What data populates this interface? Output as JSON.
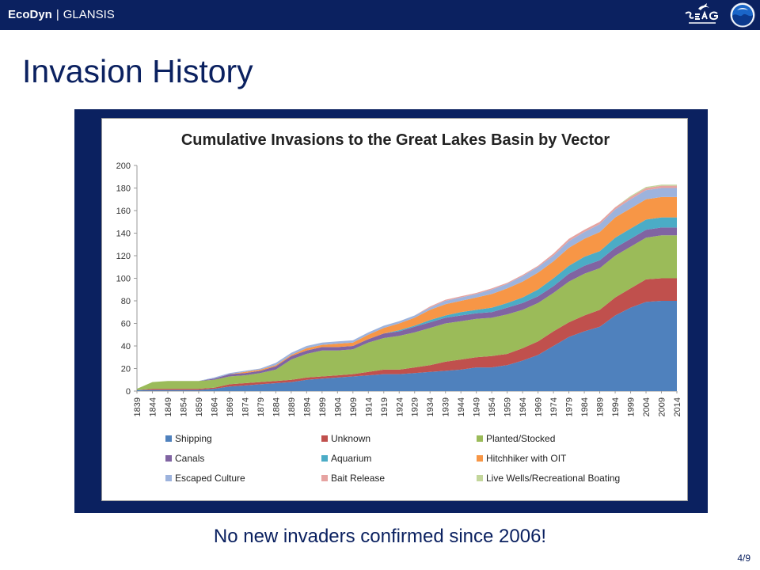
{
  "header": {
    "brand": "EcoDyn",
    "separator": "|",
    "subbrand": "GLANSIS",
    "sea_grant_logo": "sea-grant-logo",
    "noaa_logo": "noaa-logo",
    "bar_color": "#0b2160"
  },
  "slide": {
    "title": "Invasion History",
    "caption": "No new invaders confirmed since 2006!",
    "page": "4/9"
  },
  "chart_data": {
    "type": "area",
    "stacked": true,
    "title": "Cumulative Invasions to the Great Lakes Basin by Vector",
    "xlabel": "",
    "ylabel": "",
    "ylim": [
      0,
      200
    ],
    "yticks": [
      0,
      20,
      40,
      60,
      80,
      100,
      120,
      140,
      160,
      180,
      200
    ],
    "grid": false,
    "legend_position": "bottom",
    "x": [
      1839,
      1844,
      1849,
      1854,
      1859,
      1864,
      1869,
      1874,
      1879,
      1884,
      1889,
      1894,
      1899,
      1904,
      1909,
      1914,
      1919,
      1924,
      1929,
      1934,
      1939,
      1944,
      1949,
      1954,
      1959,
      1964,
      1969,
      1974,
      1979,
      1984,
      1989,
      1994,
      1999,
      2004,
      2009,
      2014
    ],
    "series": [
      {
        "name": "Shipping",
        "color": "#4f81bd",
        "values": [
          1,
          1,
          1,
          1,
          1,
          2,
          4,
          5,
          6,
          7,
          8,
          10,
          11,
          12,
          13,
          14,
          15,
          15,
          16,
          17,
          18,
          19,
          21,
          21,
          23,
          27,
          32,
          40,
          48,
          53,
          57,
          67,
          74,
          79,
          80,
          80
        ]
      },
      {
        "name": "Unknown",
        "color": "#c0504d",
        "values": [
          0,
          1,
          1,
          1,
          1,
          1,
          2,
          2,
          2,
          2,
          2,
          2,
          2,
          2,
          2,
          3,
          4,
          4,
          5,
          6,
          8,
          9,
          9,
          10,
          10,
          11,
          12,
          13,
          13,
          14,
          15,
          16,
          17,
          20,
          20,
          20
        ]
      },
      {
        "name": "Planted/Stocked",
        "color": "#9bbb59",
        "values": [
          1,
          6,
          7,
          7,
          7,
          7,
          7,
          7,
          8,
          10,
          18,
          21,
          23,
          22,
          22,
          26,
          28,
          30,
          31,
          33,
          34,
          34,
          34,
          34,
          35,
          34,
          34,
          34,
          36,
          37,
          37,
          37,
          37,
          37,
          38,
          38
        ]
      },
      {
        "name": "Canals",
        "color": "#8064a2",
        "values": [
          0,
          0,
          0,
          0,
          0,
          1,
          2,
          2,
          2,
          3,
          3,
          3,
          3,
          3,
          3,
          3,
          4,
          4,
          5,
          5,
          5,
          5,
          5,
          5,
          6,
          6,
          6,
          6,
          7,
          7,
          7,
          7,
          7,
          7,
          7,
          7
        ]
      },
      {
        "name": "Aquarium",
        "color": "#4bacc6",
        "values": [
          0,
          0,
          0,
          0,
          0,
          0,
          0,
          0,
          0,
          0,
          0,
          0,
          0,
          0,
          0,
          0,
          0,
          1,
          1,
          2,
          2,
          3,
          3,
          4,
          4,
          5,
          6,
          7,
          7,
          8,
          8,
          9,
          9,
          9,
          9,
          9
        ]
      },
      {
        "name": "Hitchhiker with OIT",
        "color": "#f79646",
        "values": [
          0,
          0,
          0,
          0,
          0,
          0,
          0,
          1,
          1,
          1,
          1,
          2,
          2,
          3,
          3,
          4,
          5,
          6,
          7,
          9,
          10,
          10,
          11,
          12,
          13,
          14,
          15,
          15,
          16,
          16,
          17,
          18,
          18,
          18,
          18,
          18
        ]
      },
      {
        "name": "Escaped Culture",
        "color": "#9db3dd",
        "values": [
          0,
          0,
          0,
          0,
          0,
          1,
          1,
          1,
          1,
          2,
          2,
          2,
          2,
          2,
          2,
          2,
          2,
          2,
          2,
          2,
          3,
          3,
          3,
          4,
          4,
          5,
          5,
          5,
          6,
          6,
          7,
          7,
          8,
          8,
          8,
          8
        ]
      },
      {
        "name": "Bait Release",
        "color": "#e6a3a1",
        "values": [
          0,
          0,
          0,
          0,
          0,
          0,
          0,
          0,
          0,
          0,
          0,
          0,
          0,
          0,
          0,
          0,
          0,
          0,
          0,
          1,
          1,
          1,
          1,
          1,
          1,
          1,
          1,
          2,
          2,
          2,
          2,
          2,
          2,
          2,
          2,
          2
        ]
      },
      {
        "name": "Live Wells/Recreational Boating",
        "color": "#c3d69b",
        "values": [
          0,
          0,
          0,
          0,
          0,
          0,
          0,
          0,
          0,
          0,
          0,
          0,
          0,
          0,
          0,
          0,
          0,
          0,
          0,
          0,
          0,
          0,
          0,
          0,
          0,
          0,
          0,
          0,
          0,
          0,
          0,
          0,
          1,
          1,
          1,
          1
        ]
      }
    ]
  }
}
